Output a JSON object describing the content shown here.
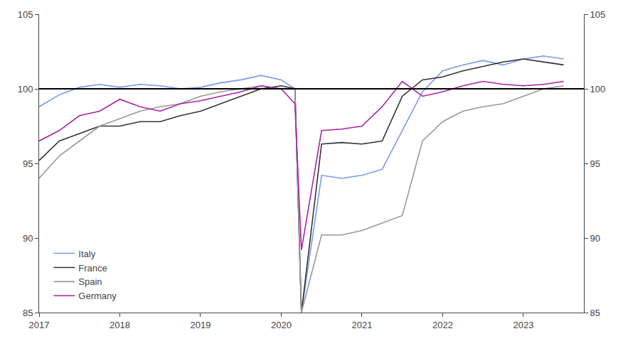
{
  "chart_data": {
    "type": "line",
    "x": [
      2017.0,
      2017.25,
      2017.5,
      2017.75,
      2018.0,
      2018.25,
      2018.5,
      2018.75,
      2019.0,
      2019.25,
      2019.5,
      2019.75,
      2020.0,
      2020.17,
      2020.25,
      2020.5,
      2020.75,
      2021.0,
      2021.25,
      2021.5,
      2021.75,
      2022.0,
      2022.25,
      2022.5,
      2022.75,
      2023.0,
      2023.25,
      2023.5
    ],
    "series": [
      {
        "name": "Italy",
        "color": "#7799ee",
        "values": [
          98.8,
          99.6,
          100.1,
          100.3,
          100.1,
          100.3,
          100.2,
          100.0,
          100.1,
          100.4,
          100.6,
          100.9,
          100.6,
          100.0,
          85.0,
          94.2,
          94.0,
          94.2,
          94.6,
          97.2,
          99.8,
          101.2,
          101.6,
          101.9,
          101.6,
          102.0,
          102.2,
          102.0
        ]
      },
      {
        "name": "France",
        "color": "#333333",
        "values": [
          95.2,
          96.5,
          97.0,
          97.5,
          97.5,
          97.8,
          97.8,
          98.2,
          98.5,
          99.0,
          99.5,
          100.0,
          100.2,
          100.0,
          85.0,
          96.3,
          96.4,
          96.3,
          96.5,
          99.5,
          100.6,
          100.8,
          101.2,
          101.5,
          101.8,
          102.0,
          101.8,
          101.6
        ]
      },
      {
        "name": "Spain",
        "color": "#999999",
        "values": [
          94.0,
          95.5,
          96.5,
          97.5,
          98.0,
          98.5,
          98.8,
          99.0,
          99.5,
          99.8,
          100.0,
          100.2,
          100.0,
          100.0,
          85.0,
          90.2,
          90.2,
          90.5,
          91.0,
          91.5,
          96.5,
          97.8,
          98.5,
          98.8,
          99.0,
          99.5,
          100.0,
          100.2
        ]
      },
      {
        "name": "Germany",
        "color": "#aa22aa",
        "values": [
          96.5,
          97.2,
          98.2,
          98.5,
          99.3,
          98.8,
          98.5,
          99.0,
          99.2,
          99.5,
          99.8,
          100.2,
          100.0,
          99.0,
          89.2,
          97.2,
          97.3,
          97.5,
          98.8,
          100.5,
          99.5,
          99.8,
          100.2,
          100.5,
          100.3,
          100.2,
          100.3,
          100.5
        ]
      }
    ],
    "hline": 100,
    "xlim": [
      2017.0,
      2023.75
    ],
    "xticks": [
      2017,
      2018,
      2019,
      2020,
      2021,
      2022,
      2023
    ],
    "ylim": [
      85,
      105
    ],
    "yticks": [
      85,
      90,
      95,
      100,
      105
    ],
    "y2lim": [
      85,
      105
    ],
    "y2ticks": [
      85,
      90,
      95,
      100,
      105
    ],
    "grid": false,
    "legend": "lower left"
  }
}
